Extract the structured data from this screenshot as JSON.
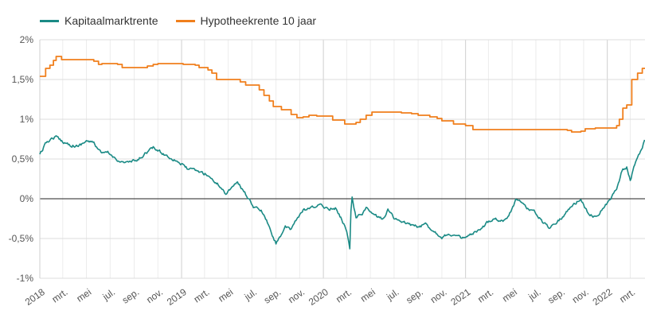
{
  "chart_data": {
    "type": "line",
    "title": "",
    "xlabel": "",
    "ylabel": "",
    "x_range": [
      "2018-01-01",
      "2022-04-08"
    ],
    "ylim": [
      -1,
      2
    ],
    "y_unit": "%",
    "y_ticks": [
      {
        "value": 2,
        "label": "2%"
      },
      {
        "value": 1.5,
        "label": "1,5%"
      },
      {
        "value": 1,
        "label": "1%"
      },
      {
        "value": 0.5,
        "label": "0,5%"
      },
      {
        "value": 0,
        "label": "0%"
      },
      {
        "value": -0.5,
        "label": "-0,5%"
      },
      {
        "value": -1,
        "label": "-1%"
      }
    ],
    "x_ticks": [
      {
        "date": "2018-01-01",
        "label": "2018",
        "year": true
      },
      {
        "date": "2018-03-01",
        "label": "mrt."
      },
      {
        "date": "2018-05-01",
        "label": "mei"
      },
      {
        "date": "2018-07-01",
        "label": "jul."
      },
      {
        "date": "2018-09-01",
        "label": "sep."
      },
      {
        "date": "2018-11-01",
        "label": "nov."
      },
      {
        "date": "2019-01-01",
        "label": "2019",
        "year": true
      },
      {
        "date": "2019-03-01",
        "label": "mrt."
      },
      {
        "date": "2019-05-01",
        "label": "mei"
      },
      {
        "date": "2019-07-01",
        "label": "jul."
      },
      {
        "date": "2019-09-01",
        "label": "sep."
      },
      {
        "date": "2019-11-01",
        "label": "nov."
      },
      {
        "date": "2020-01-01",
        "label": "2020",
        "year": true
      },
      {
        "date": "2020-03-01",
        "label": "mrt."
      },
      {
        "date": "2020-05-01",
        "label": "mei"
      },
      {
        "date": "2020-07-01",
        "label": "jul."
      },
      {
        "date": "2020-09-01",
        "label": "sep."
      },
      {
        "date": "2020-11-01",
        "label": "nov."
      },
      {
        "date": "2021-01-01",
        "label": "2021",
        "year": true
      },
      {
        "date": "2021-03-01",
        "label": "mrt."
      },
      {
        "date": "2021-05-01",
        "label": "mei"
      },
      {
        "date": "2021-07-01",
        "label": "jul."
      },
      {
        "date": "2021-09-01",
        "label": "sep."
      },
      {
        "date": "2021-11-01",
        "label": "nov."
      },
      {
        "date": "2022-01-01",
        "label": "2022",
        "year": true
      },
      {
        "date": "2022-03-01",
        "label": "mrt."
      }
    ],
    "grid": true,
    "legend_position": "top-left",
    "series": [
      {
        "name": "Kapitaalmarktrente",
        "color": "#1a8a85",
        "style": "noisy-line",
        "points": [
          [
            "2018-01-01",
            0.56
          ],
          [
            "2018-01-20",
            0.72
          ],
          [
            "2018-02-10",
            0.78
          ],
          [
            "2018-03-01",
            0.72
          ],
          [
            "2018-03-20",
            0.68
          ],
          [
            "2018-04-10",
            0.66
          ],
          [
            "2018-05-01",
            0.73
          ],
          [
            "2018-05-20",
            0.7
          ],
          [
            "2018-06-10",
            0.56
          ],
          [
            "2018-06-25",
            0.58
          ],
          [
            "2018-07-10",
            0.52
          ],
          [
            "2018-08-01",
            0.46
          ],
          [
            "2018-08-20",
            0.46
          ],
          [
            "2018-09-10",
            0.48
          ],
          [
            "2018-10-01",
            0.58
          ],
          [
            "2018-10-20",
            0.64
          ],
          [
            "2018-11-10",
            0.58
          ],
          [
            "2018-12-01",
            0.52
          ],
          [
            "2018-12-20",
            0.48
          ],
          [
            "2019-01-15",
            0.38
          ],
          [
            "2019-02-15",
            0.34
          ],
          [
            "2019-03-10",
            0.3
          ],
          [
            "2019-03-25",
            0.22
          ],
          [
            "2019-04-10",
            0.16
          ],
          [
            "2019-04-25",
            0.06
          ],
          [
            "2019-05-15",
            0.18
          ],
          [
            "2019-05-25",
            0.2
          ],
          [
            "2019-06-15",
            0.06
          ],
          [
            "2019-07-05",
            -0.1
          ],
          [
            "2019-07-25",
            -0.15
          ],
          [
            "2019-08-10",
            -0.3
          ],
          [
            "2019-08-20",
            -0.44
          ],
          [
            "2019-09-01",
            -0.56
          ],
          [
            "2019-09-10",
            -0.48
          ],
          [
            "2019-09-25",
            -0.36
          ],
          [
            "2019-10-10",
            -0.4
          ],
          [
            "2019-10-20",
            -0.28
          ],
          [
            "2019-11-10",
            -0.15
          ],
          [
            "2019-12-01",
            -0.12
          ],
          [
            "2019-12-20",
            -0.08
          ],
          [
            "2020-01-15",
            -0.12
          ],
          [
            "2020-02-01",
            -0.12
          ],
          [
            "2020-02-15",
            -0.24
          ],
          [
            "2020-03-01",
            -0.4
          ],
          [
            "2020-03-09",
            -0.62
          ],
          [
            "2020-03-12",
            -0.15
          ],
          [
            "2020-03-15",
            0.04
          ],
          [
            "2020-03-25",
            -0.24
          ],
          [
            "2020-04-10",
            -0.18
          ],
          [
            "2020-04-20",
            -0.12
          ],
          [
            "2020-05-10",
            -0.2
          ],
          [
            "2020-06-01",
            -0.26
          ],
          [
            "2020-06-15",
            -0.14
          ],
          [
            "2020-07-01",
            -0.24
          ],
          [
            "2020-07-20",
            -0.3
          ],
          [
            "2020-08-10",
            -0.32
          ],
          [
            "2020-09-01",
            -0.36
          ],
          [
            "2020-09-20",
            -0.32
          ],
          [
            "2020-10-10",
            -0.4
          ],
          [
            "2020-11-01",
            -0.48
          ],
          [
            "2020-11-20",
            -0.44
          ],
          [
            "2020-12-10",
            -0.48
          ],
          [
            "2021-01-01",
            -0.5
          ],
          [
            "2021-01-20",
            -0.44
          ],
          [
            "2021-02-10",
            -0.4
          ],
          [
            "2021-02-25",
            -0.3
          ],
          [
            "2021-03-15",
            -0.24
          ],
          [
            "2021-04-05",
            -0.28
          ],
          [
            "2021-04-20",
            -0.24
          ],
          [
            "2021-05-10",
            -0.02
          ],
          [
            "2021-05-25",
            -0.04
          ],
          [
            "2021-06-10",
            -0.12
          ],
          [
            "2021-07-01",
            -0.18
          ],
          [
            "2021-07-20",
            -0.3
          ],
          [
            "2021-08-05",
            -0.36
          ],
          [
            "2021-08-20",
            -0.3
          ],
          [
            "2021-09-10",
            -0.22
          ],
          [
            "2021-09-25",
            -0.12
          ],
          [
            "2021-10-10",
            -0.06
          ],
          [
            "2021-10-25",
            0.0
          ],
          [
            "2021-11-10",
            -0.16
          ],
          [
            "2021-11-25",
            -0.22
          ],
          [
            "2021-12-10",
            -0.18
          ],
          [
            "2021-12-25",
            -0.1
          ],
          [
            "2022-01-10",
            0.0
          ],
          [
            "2022-01-25",
            0.14
          ],
          [
            "2022-02-10",
            0.38
          ],
          [
            "2022-02-20",
            0.4
          ],
          [
            "2022-03-01",
            0.22
          ],
          [
            "2022-03-10",
            0.4
          ],
          [
            "2022-03-20",
            0.54
          ],
          [
            "2022-04-01",
            0.64
          ],
          [
            "2022-04-07",
            0.74
          ]
        ]
      },
      {
        "name": "Hypotheekrente 10 jaar",
        "color": "#f07f1c",
        "style": "step",
        "points": [
          [
            "2018-01-01",
            1.54
          ],
          [
            "2018-01-16",
            1.64
          ],
          [
            "2018-01-27",
            1.68
          ],
          [
            "2018-02-05",
            1.74
          ],
          [
            "2018-02-12",
            1.79
          ],
          [
            "2018-02-26",
            1.75
          ],
          [
            "2018-05-20",
            1.73
          ],
          [
            "2018-06-01",
            1.69
          ],
          [
            "2018-06-10",
            1.7
          ],
          [
            "2018-07-20",
            1.69
          ],
          [
            "2018-08-01",
            1.65
          ],
          [
            "2018-10-05",
            1.67
          ],
          [
            "2018-10-20",
            1.69
          ],
          [
            "2018-11-01",
            1.7
          ],
          [
            "2019-01-05",
            1.69
          ],
          [
            "2019-02-05",
            1.68
          ],
          [
            "2019-02-15",
            1.65
          ],
          [
            "2019-03-10",
            1.62
          ],
          [
            "2019-03-20",
            1.58
          ],
          [
            "2019-04-01",
            1.5
          ],
          [
            "2019-05-15",
            1.5
          ],
          [
            "2019-06-01",
            1.47
          ],
          [
            "2019-06-15",
            1.43
          ],
          [
            "2019-07-20",
            1.37
          ],
          [
            "2019-08-01",
            1.3
          ],
          [
            "2019-08-15",
            1.23
          ],
          [
            "2019-08-25",
            1.16
          ],
          [
            "2019-09-15",
            1.12
          ],
          [
            "2019-10-10",
            1.06
          ],
          [
            "2019-10-25",
            1.02
          ],
          [
            "2019-11-10",
            1.03
          ],
          [
            "2019-11-25",
            1.05
          ],
          [
            "2019-12-15",
            1.04
          ],
          [
            "2020-01-10",
            1.04
          ],
          [
            "2020-01-25",
            0.99
          ],
          [
            "2020-02-25",
            0.94
          ],
          [
            "2020-03-25",
            0.96
          ],
          [
            "2020-04-05",
            1.0
          ],
          [
            "2020-04-20",
            1.05
          ],
          [
            "2020-05-05",
            1.09
          ],
          [
            "2020-07-20",
            1.08
          ],
          [
            "2020-08-15",
            1.07
          ],
          [
            "2020-09-01",
            1.05
          ],
          [
            "2020-10-01",
            1.03
          ],
          [
            "2020-10-20",
            1.01
          ],
          [
            "2020-11-01",
            0.98
          ],
          [
            "2020-12-01",
            0.94
          ],
          [
            "2021-01-01",
            0.92
          ],
          [
            "2021-01-20",
            0.87
          ],
          [
            "2021-08-01",
            0.87
          ],
          [
            "2021-09-20",
            0.86
          ],
          [
            "2021-10-01",
            0.84
          ],
          [
            "2021-10-25",
            0.85
          ],
          [
            "2021-11-05",
            0.88
          ],
          [
            "2021-12-01",
            0.89
          ],
          [
            "2022-01-10",
            0.89
          ],
          [
            "2022-01-25",
            0.92
          ],
          [
            "2022-02-01",
            1.0
          ],
          [
            "2022-02-10",
            1.14
          ],
          [
            "2022-02-20",
            1.18
          ],
          [
            "2022-03-05",
            1.5
          ],
          [
            "2022-03-20",
            1.58
          ],
          [
            "2022-04-01",
            1.64
          ]
        ]
      }
    ]
  }
}
